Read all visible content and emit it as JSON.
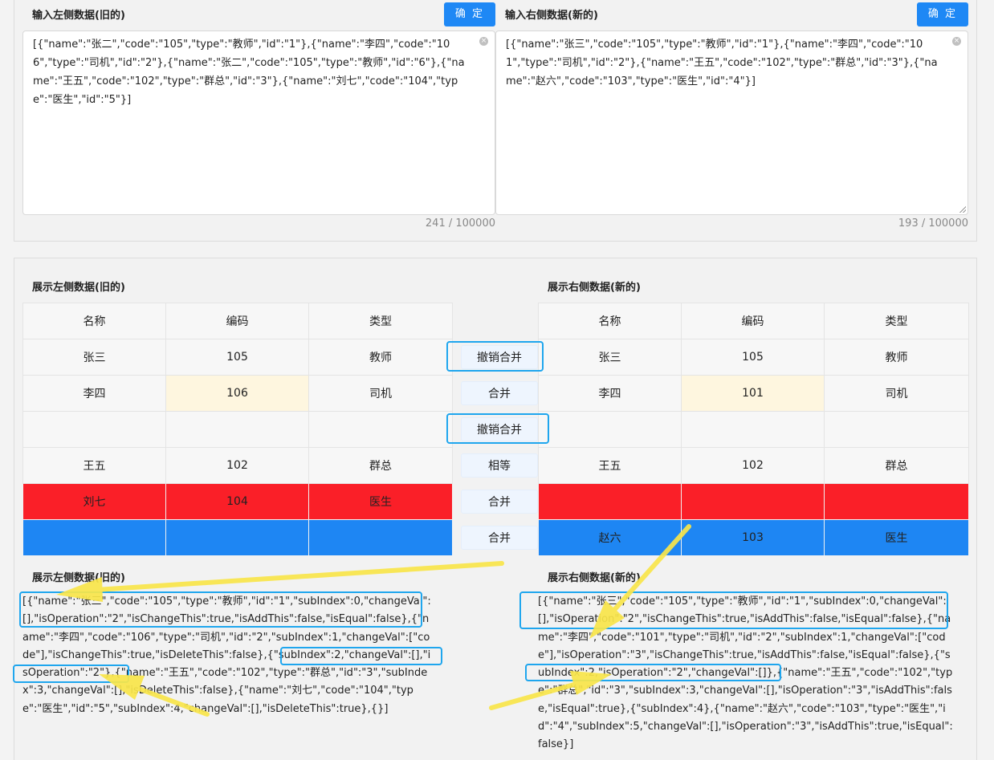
{
  "input": {
    "left_label": "输入左侧数据(旧的)",
    "right_label": "输入右侧数据(新的)",
    "confirm": "确 定",
    "left_value": "[{\"name\":\"张二\",\"code\":\"105\",\"type\":\"教师\",\"id\":\"1\"},{\"name\":\"李四\",\"code\":\"106\",\"type\":\"司机\",\"id\":\"2\"},{\"name\":\"张二\",\"code\":\"105\",\"type\":\"教师\",\"id\":\"6\"},{\"name\":\"王五\",\"code\":\"102\",\"type\":\"群总\",\"id\":\"3\"},{\"name\":\"刘七\",\"code\":\"104\",\"type\":\"医生\",\"id\":\"5\"}]",
    "right_value": "[{\"name\":\"张三\",\"code\":\"105\",\"type\":\"教师\",\"id\":\"1\"},{\"name\":\"李四\",\"code\":\"101\",\"type\":\"司机\",\"id\":\"2\"},{\"name\":\"王五\",\"code\":\"102\",\"type\":\"群总\",\"id\":\"3\"},{\"name\":\"赵六\",\"code\":\"103\",\"type\":\"医生\",\"id\":\"4\"}]",
    "left_count": "241 / 100000",
    "right_count": "193 / 100000"
  },
  "display": {
    "left_label": "展示左侧数据(旧的)",
    "right_label": "展示右侧数据(新的)",
    "headers": [
      "名称",
      "编码",
      "类型"
    ],
    "left_rows": [
      [
        "张三",
        "105",
        "教师"
      ],
      [
        "李四",
        "106",
        "司机"
      ],
      [
        "",
        "",
        ""
      ],
      [
        "王五",
        "102",
        "群总"
      ],
      [
        "刘七",
        "104",
        "医生"
      ],
      [
        "",
        "",
        ""
      ]
    ],
    "right_rows": [
      [
        "张三",
        "105",
        "教师"
      ],
      [
        "李四",
        "101",
        "司机"
      ],
      [
        "",
        "",
        ""
      ],
      [
        "王五",
        "102",
        "群总"
      ],
      [
        "",
        "",
        ""
      ],
      [
        "赵六",
        "103",
        "医生"
      ]
    ],
    "actions": [
      "撤销合并",
      "合并",
      "撤销合并",
      "相等",
      "合并",
      "合并"
    ]
  },
  "result": {
    "left_label": "展示左侧数据(旧的)",
    "right_label": "展示右侧数据(新的)",
    "left_json": "[{\"name\":\"张三\",\"code\":\"105\",\"type\":\"教师\",\"id\":\"1\",\"subIndex\":0,\"changeVal\":[],\"isOperation\":\"2\",\"isChangeThis\":true,\"isAddThis\":false,\"isEqual\":false},{\"name\":\"李四\",\"code\":\"106\",\"type\":\"司机\",\"id\":\"2\",\"subIndex\":1,\"changeVal\":[\"code\"],\"isChangeThis\":true,\"isDeleteThis\":false},{\"subIndex\":2,\"changeVal\":[],\"isOperation\":\"2\"},{\"name\":\"王五\",\"code\":\"102\",\"type\":\"群总\",\"id\":\"3\",\"subIndex\":3,\"changeVal\":[],\"isDeleteThis\":false},{\"name\":\"刘七\",\"code\":\"104\",\"type\":\"医生\",\"id\":\"5\",\"subIndex\":4,\"changeVal\":[],\"isDeleteThis\":true},{}]",
    "right_json": "[{\"name\":\"张三\",\"code\":\"105\",\"type\":\"教师\",\"id\":\"1\",\"subIndex\":0,\"changeVal\":[],\"isOperation\":\"2\",\"isChangeThis\":true,\"isAddThis\":false,\"isEqual\":false},{\"name\":\"李四\",\"code\":\"101\",\"type\":\"司机\",\"id\":\"2\",\"subIndex\":1,\"changeVal\":[\"code\"],\"isOperation\":\"3\",\"isChangeThis\":true,\"isAddThis\":false,\"isEqual\":false},{\"subIndex\":2,\"isOperation\":\"2\",\"changeVal\":[]},{\"name\":\"王五\",\"code\":\"102\",\"type\":\"群总\",\"id\":\"3\",\"subIndex\":3,\"changeVal\":[],\"isOperation\":\"3\",\"isAddThis\":false,\"isEqual\":true},{\"subIndex\":4},{\"name\":\"赵六\",\"code\":\"103\",\"type\":\"医生\",\"id\":\"4\",\"subIndex\":5,\"changeVal\":[],\"isOperation\":\"3\",\"isAddThis\":true,\"isEqual\":false}]"
  },
  "colors": {
    "accent": "#1e88f5",
    "deleted_row": "#fa1f28",
    "added_row": "#1e86f3",
    "changed_cell": "#fef6df",
    "annotation_box": "#1fa6ee",
    "annotation_arrow": "#f9e64a"
  }
}
